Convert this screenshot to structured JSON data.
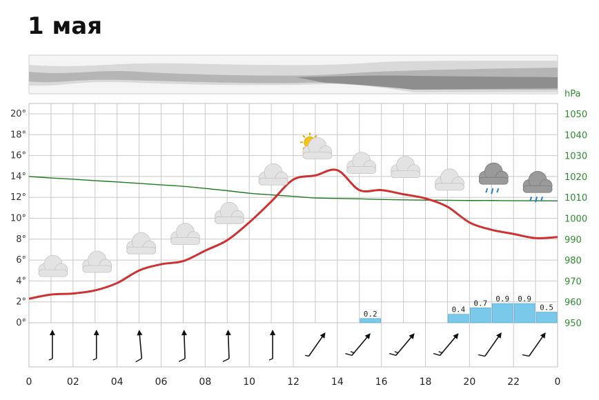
{
  "header": {
    "date_title": "1 мая"
  },
  "chart_data": {
    "type": "line",
    "title": "1 мая",
    "x": [
      0,
      1,
      2,
      3,
      4,
      5,
      6,
      7,
      8,
      9,
      10,
      11,
      12,
      13,
      14,
      15,
      16,
      17,
      18,
      19,
      20,
      21,
      22,
      23,
      24
    ],
    "x_tick_labels": [
      "0",
      "02",
      "04",
      "06",
      "08",
      "10",
      "12",
      "14",
      "16",
      "18",
      "20",
      "22",
      "0"
    ],
    "y_left_ticks": [
      "20°",
      "18°",
      "16°",
      "14°",
      "12°",
      "10°",
      "8°",
      "6°",
      "4°",
      "2°",
      "0°"
    ],
    "y_right_unit": "hPa",
    "y_right_ticks": [
      "1050",
      "1040",
      "1030",
      "1020",
      "1010",
      "1000",
      "990",
      "980",
      "970",
      "960",
      "950"
    ],
    "ylim_left": [
      0,
      20
    ],
    "ylim_right": [
      950,
      1050
    ],
    "grid": true,
    "series": [
      {
        "color": "#d03030",
        "values": [
          2.3,
          2.7,
          2.8,
          3.1,
          3.8,
          5.0,
          5.6,
          5.9,
          6.9,
          7.9,
          9.6,
          11.6,
          13.7,
          14.1,
          14.6,
          12.7,
          12.7,
          12.3,
          11.9,
          11.1,
          9.6,
          8.9,
          8.5,
          8.1,
          8.2
        ]
      },
      {
        "color": "#1e7a1e",
        "values": [
          1020.0,
          1019.3,
          1018.7,
          1018.0,
          1017.4,
          1016.7,
          1016.0,
          1015.3,
          1014.3,
          1013.2,
          1012.0,
          1011.2,
          1010.5,
          1009.7,
          1009.5,
          1009.3,
          1009.0,
          1008.8,
          1008.7,
          1008.6,
          1008.5,
          1008.5,
          1008.4,
          1008.4,
          1008.3
        ]
      }
    ],
    "precipitation": [
      {
        "hour": 15,
        "value": "0.2"
      },
      {
        "hour": 19,
        "value": "0.4"
      },
      {
        "hour": 20,
        "value": "0.7"
      },
      {
        "hour": 21,
        "value": "0.9"
      },
      {
        "hour": 22,
        "value": "0.9"
      },
      {
        "hour": 23,
        "value": "0.5"
      }
    ],
    "weather_icons": [
      {
        "hour": 1,
        "icon": "cloud-icon"
      },
      {
        "hour": 3,
        "icon": "cloud-icon"
      },
      {
        "hour": 5,
        "icon": "cloud-icon"
      },
      {
        "hour": 7,
        "icon": "cloud-icon"
      },
      {
        "hour": 9,
        "icon": "cloud-icon"
      },
      {
        "hour": 11,
        "icon": "cloud-icon"
      },
      {
        "hour": 13,
        "icon": "sun-behind-cloud-icon"
      },
      {
        "hour": 15,
        "icon": "cloud-icon"
      },
      {
        "hour": 17,
        "icon": "cloud-icon"
      },
      {
        "hour": 19,
        "icon": "cloud-icon"
      },
      {
        "hour": 21,
        "icon": "rain-cloud-icon"
      },
      {
        "hour": 23,
        "icon": "rain-cloud-icon"
      }
    ],
    "wind_barbs": [
      {
        "hour": 1,
        "direction_deg": 180,
        "speed_kt": 5
      },
      {
        "hour": 3,
        "direction_deg": 180,
        "speed_kt": 5
      },
      {
        "hour": 5,
        "direction_deg": 175,
        "speed_kt": 10
      },
      {
        "hour": 7,
        "direction_deg": 178,
        "speed_kt": 10
      },
      {
        "hour": 9,
        "direction_deg": 178,
        "speed_kt": 10
      },
      {
        "hour": 11,
        "direction_deg": 180,
        "speed_kt": 5
      },
      {
        "hour": 13,
        "direction_deg": 215,
        "speed_kt": 5
      },
      {
        "hour": 15,
        "direction_deg": 220,
        "speed_kt": 15
      },
      {
        "hour": 17,
        "direction_deg": 220,
        "speed_kt": 15
      },
      {
        "hour": 19,
        "direction_deg": 220,
        "speed_kt": 15
      },
      {
        "hour": 21,
        "direction_deg": 215,
        "speed_kt": 10
      },
      {
        "hour": 23,
        "direction_deg": 215,
        "speed_kt": 10
      }
    ],
    "colors": {
      "temperature": "#d03030",
      "pressure": "#1e7a1e",
      "precipitation": "#7ac8ea",
      "grid": "#c8c8c8"
    }
  }
}
